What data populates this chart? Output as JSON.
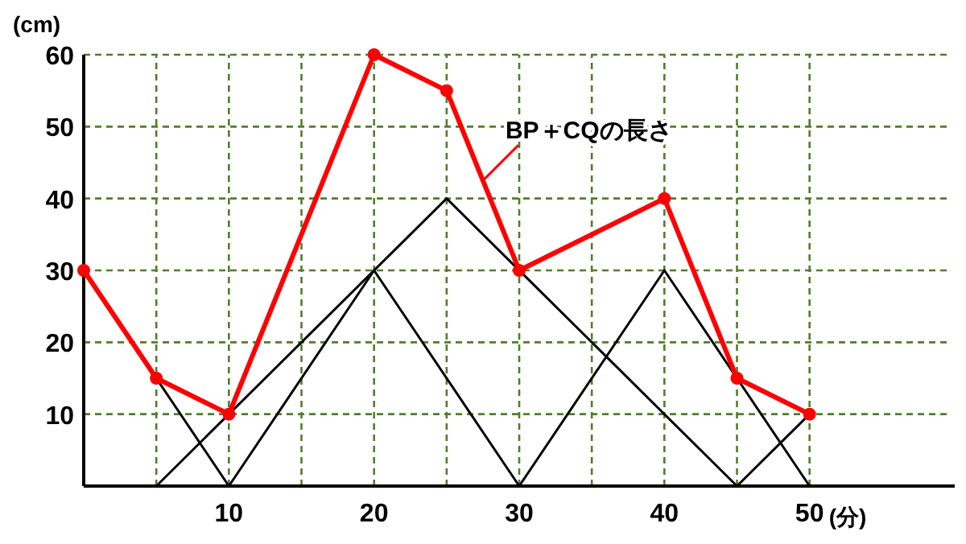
{
  "chart_data": {
    "type": "line",
    "xlabel": "(分)",
    "ylabel": "(cm)",
    "xlim": [
      0,
      60
    ],
    "ylim": [
      0,
      60
    ],
    "xticks": [
      {
        "value": 5,
        "label": null
      },
      10,
      {
        "value": 15,
        "label": null
      },
      20,
      {
        "value": 25,
        "label": null
      },
      30,
      {
        "value": 35,
        "label": null
      },
      40,
      {
        "value": 45,
        "label": null
      },
      50
    ],
    "yticks": [
      10,
      20,
      30,
      40,
      50,
      60
    ],
    "grid": true,
    "series": [
      {
        "color": "#000000",
        "x": [
          0,
          10,
          20,
          30,
          40,
          50
        ],
        "values": [
          30,
          0,
          30,
          0,
          30,
          0
        ],
        "marker": "none"
      },
      {
        "color": "#000000",
        "x": [
          5,
          25,
          45,
          50
        ],
        "values": [
          0,
          40,
          0,
          10
        ],
        "marker": "none"
      },
      {
        "color": "#ff0000",
        "x": [
          0,
          5,
          10,
          20,
          25,
          30,
          40,
          45,
          50
        ],
        "values": [
          30,
          15,
          10,
          60,
          55,
          30,
          40,
          15,
          10
        ],
        "marker": "circle"
      }
    ],
    "annotations": [
      {
        "text": "BP＋CQの長さ",
        "x": 27.5,
        "y": 42.5
      }
    ]
  }
}
